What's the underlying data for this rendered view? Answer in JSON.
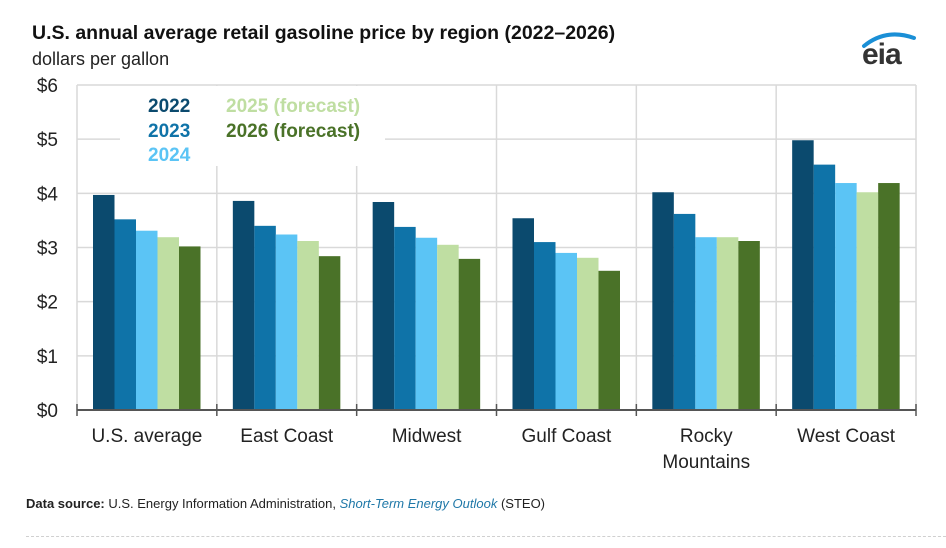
{
  "chart_data": {
    "type": "bar",
    "title": "U.S. annual average retail gasoline price by region (2022–2026)",
    "subtitle": "dollars per gallon",
    "xlabel": "",
    "ylabel": "dollars per gallon",
    "ylim": [
      0,
      6
    ],
    "yticks": [
      0,
      1,
      2,
      3,
      4,
      5,
      6
    ],
    "ytick_labels": [
      "$0",
      "$1",
      "$2",
      "$3",
      "$4",
      "$5",
      "$6"
    ],
    "grid": true,
    "legend_position": "top-left",
    "categories": [
      "U.S. average",
      "East Coast",
      "Midwest",
      "Gulf Coast",
      "Rocky Mountains",
      "West Coast"
    ],
    "category_labels": [
      [
        "U.S. average"
      ],
      [
        "East Coast"
      ],
      [
        "Midwest"
      ],
      [
        "Gulf Coast"
      ],
      [
        "Rocky",
        "Mountains"
      ],
      [
        "West Coast"
      ]
    ],
    "series": [
      {
        "name": "2022",
        "color": "#0b4a6e",
        "values": [
          3.97,
          3.86,
          3.84,
          3.54,
          4.02,
          4.98
        ]
      },
      {
        "name": "2023",
        "color": "#0f73a8",
        "values": [
          3.52,
          3.4,
          3.38,
          3.1,
          3.62,
          4.53
        ]
      },
      {
        "name": "2024",
        "color": "#5bc4f5",
        "values": [
          3.31,
          3.24,
          3.18,
          2.9,
          3.19,
          4.19
        ]
      },
      {
        "name": "2025 (forecast)",
        "color": "#bfdea2",
        "values": [
          3.19,
          3.12,
          3.05,
          2.81,
          3.19,
          4.02
        ]
      },
      {
        "name": "2026 (forecast)",
        "color": "#4a7228",
        "values": [
          3.02,
          2.84,
          2.79,
          2.57,
          3.12,
          4.19
        ]
      }
    ]
  },
  "logo": {
    "text": "eia"
  },
  "source": {
    "label": "Data source:",
    "text": " U.S. Energy Information Administration, ",
    "link": "Short-Term Energy Outlook",
    "suffix": " (STEO)"
  }
}
